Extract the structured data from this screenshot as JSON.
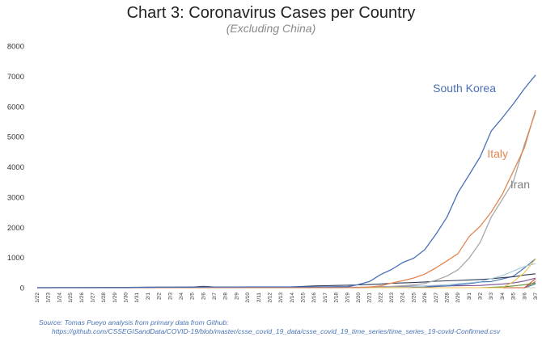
{
  "chart_data": {
    "type": "line",
    "title": "Chart 3: Coronavirus Cases per Country",
    "subtitle": "(Excluding China)",
    "xlabel": "",
    "ylabel": "",
    "ylim": [
      0,
      8000
    ],
    "yticks": [
      0,
      1000,
      2000,
      3000,
      4000,
      5000,
      6000,
      7000,
      8000
    ],
    "grid": false,
    "x": [
      "1/22",
      "1/23",
      "1/24",
      "1/25",
      "1/26",
      "1/27",
      "1/28",
      "1/29",
      "1/30",
      "1/31",
      "2/1",
      "2/2",
      "2/3",
      "2/4",
      "2/5",
      "2/6",
      "2/7",
      "2/8",
      "2/9",
      "2/10",
      "2/11",
      "2/12",
      "2/13",
      "2/14",
      "2/15",
      "2/16",
      "2/17",
      "2/18",
      "2/19",
      "2/20",
      "2/21",
      "2/22",
      "2/23",
      "2/24",
      "2/25",
      "2/26",
      "2/27",
      "2/28",
      "2/29",
      "3/1",
      "3/2",
      "3/3",
      "3/4",
      "3/5",
      "3/6",
      "3/7"
    ],
    "series": [
      {
        "name": "South Korea",
        "color": "#4a6fb8",
        "label_color": "#4a6fb8",
        "values": [
          1,
          1,
          2,
          2,
          3,
          4,
          4,
          4,
          4,
          11,
          12,
          15,
          15,
          16,
          19,
          23,
          24,
          24,
          25,
          27,
          28,
          28,
          28,
          28,
          28,
          29,
          30,
          31,
          31,
          104,
          204,
          433,
          602,
          833,
          977,
          1261,
          1766,
          2337,
          3150,
          3736,
          4335,
          5186,
          5621,
          6088,
          6593,
          7041
        ]
      },
      {
        "name": "Italy",
        "color": "#e38650",
        "label_color": "#e38650",
        "values": [
          0,
          0,
          0,
          0,
          0,
          0,
          0,
          0,
          0,
          2,
          2,
          2,
          2,
          2,
          2,
          2,
          3,
          3,
          3,
          3,
          3,
          3,
          3,
          3,
          3,
          3,
          3,
          3,
          3,
          3,
          20,
          62,
          155,
          229,
          322,
          453,
          655,
          888,
          1128,
          1694,
          2036,
          2502,
          3089,
          3858,
          4636,
          5883
        ]
      },
      {
        "name": "Iran",
        "color": "#a8a8a8",
        "label_color": "#7f7f7f",
        "values": [
          0,
          0,
          0,
          0,
          0,
          0,
          0,
          0,
          0,
          0,
          0,
          0,
          0,
          0,
          0,
          0,
          0,
          0,
          0,
          0,
          0,
          0,
          0,
          0,
          0,
          0,
          0,
          0,
          2,
          5,
          18,
          28,
          43,
          61,
          95,
          139,
          245,
          388,
          593,
          978,
          1501,
          2336,
          2922,
          3513,
          4747,
          5823
        ]
      },
      {
        "values": [
          0,
          0,
          0,
          0,
          0,
          0,
          0,
          0,
          0,
          0,
          0,
          0,
          0,
          0,
          0,
          0,
          0,
          0,
          0,
          0,
          0,
          0,
          0,
          0,
          0,
          0,
          0,
          0,
          0,
          0,
          0,
          0,
          0,
          0,
          0,
          0,
          0,
          0,
          0,
          0,
          0,
          0,
          0,
          200,
          500,
          950
        ],
        "color": "#f2c14e"
      },
      {
        "values": [
          0,
          0,
          0,
          0,
          0,
          0,
          0,
          0,
          0,
          0,
          0,
          0,
          0,
          0,
          0,
          0,
          0,
          0,
          0,
          0,
          0,
          0,
          0,
          0,
          0,
          0,
          0,
          0,
          0,
          0,
          0,
          0,
          10,
          20,
          40,
          60,
          80,
          100,
          130,
          160,
          200,
          300,
          400,
          550,
          700,
          800
        ],
        "color": "#9fc6d9"
      },
      {
        "values": [
          2,
          2,
          2,
          2,
          4,
          4,
          7,
          7,
          11,
          15,
          20,
          20,
          20,
          22,
          22,
          45,
          25,
          25,
          26,
          26,
          26,
          28,
          28,
          29,
          43,
          59,
          66,
          74,
          84,
          94,
          105,
          122,
          147,
          159,
          170,
          189,
          214,
          228,
          241,
          256,
          274,
          293,
          331,
          360,
          420,
          461
        ],
        "color": "#2b3a55"
      },
      {
        "values": [
          0,
          0,
          2,
          3,
          3,
          3,
          4,
          5,
          5,
          5,
          6,
          6,
          6,
          6,
          6,
          6,
          6,
          11,
          11,
          11,
          11,
          11,
          11,
          11,
          12,
          12,
          12,
          12,
          12,
          12,
          12,
          12,
          12,
          12,
          14,
          18,
          38,
          57,
          100,
          130,
          191,
          204,
          288,
          380,
          656,
          957
        ],
        "color": "#3f6fb0"
      },
      {
        "values": [
          0,
          0,
          0,
          0,
          0,
          0,
          0,
          0,
          0,
          0,
          0,
          0,
          0,
          0,
          0,
          0,
          0,
          0,
          0,
          0,
          0,
          0,
          0,
          0,
          0,
          0,
          0,
          0,
          0,
          0,
          0,
          0,
          0,
          0,
          0,
          0,
          0,
          0,
          0,
          0,
          0,
          10,
          30,
          60,
          100,
          150
        ],
        "color": "#5b8c3a"
      },
      {
        "values": [
          0,
          0,
          0,
          0,
          0,
          0,
          0,
          0,
          0,
          0,
          0,
          0,
          0,
          0,
          0,
          0,
          0,
          0,
          0,
          0,
          0,
          0,
          0,
          0,
          0,
          0,
          0,
          0,
          0,
          0,
          0,
          0,
          0,
          0,
          0,
          0,
          0,
          0,
          0,
          0,
          0,
          0,
          0,
          0,
          0,
          300
        ],
        "color": "#d1571e"
      },
      {
        "values": [
          2,
          1,
          2,
          2,
          5,
          5,
          5,
          5,
          5,
          7,
          8,
          8,
          11,
          11,
          11,
          12,
          12,
          12,
          12,
          12,
          13,
          13,
          14,
          14,
          15,
          15,
          15,
          15,
          15,
          15,
          15,
          35,
          35,
          35,
          53,
          57,
          60,
          60,
          63,
          68,
          75,
          100,
          124,
          158,
          221,
          319
        ],
        "color": "#7a4f98"
      },
      {
        "values": [
          0,
          0,
          0,
          0,
          0,
          0,
          0,
          0,
          0,
          0,
          0,
          0,
          0,
          0,
          0,
          0,
          0,
          0,
          0,
          0,
          0,
          0,
          0,
          0,
          0,
          0,
          0,
          0,
          0,
          0,
          0,
          0,
          0,
          0,
          0,
          0,
          0,
          0,
          0,
          0,
          0,
          0,
          0,
          0,
          0,
          200
        ],
        "color": "#c45a8a"
      },
      {
        "values": [
          0,
          0,
          0,
          0,
          0,
          0,
          0,
          0,
          0,
          0,
          0,
          0,
          0,
          0,
          0,
          0,
          0,
          0,
          0,
          0,
          0,
          0,
          0,
          0,
          0,
          0,
          0,
          0,
          0,
          0,
          0,
          0,
          0,
          0,
          0,
          0,
          0,
          0,
          0,
          0,
          0,
          0,
          0,
          0,
          0,
          120
        ],
        "color": "#3c8a8a"
      }
    ]
  },
  "source": {
    "line1": "Source: Tomas Pueyo analysis from primary data from Github:",
    "line2": "https://github.com/CSSEGISandData/COVID-19/blob/master/csse_covid_19_data/csse_covid_19_time_series/time_series_19-covid-Confirmed.csv"
  }
}
